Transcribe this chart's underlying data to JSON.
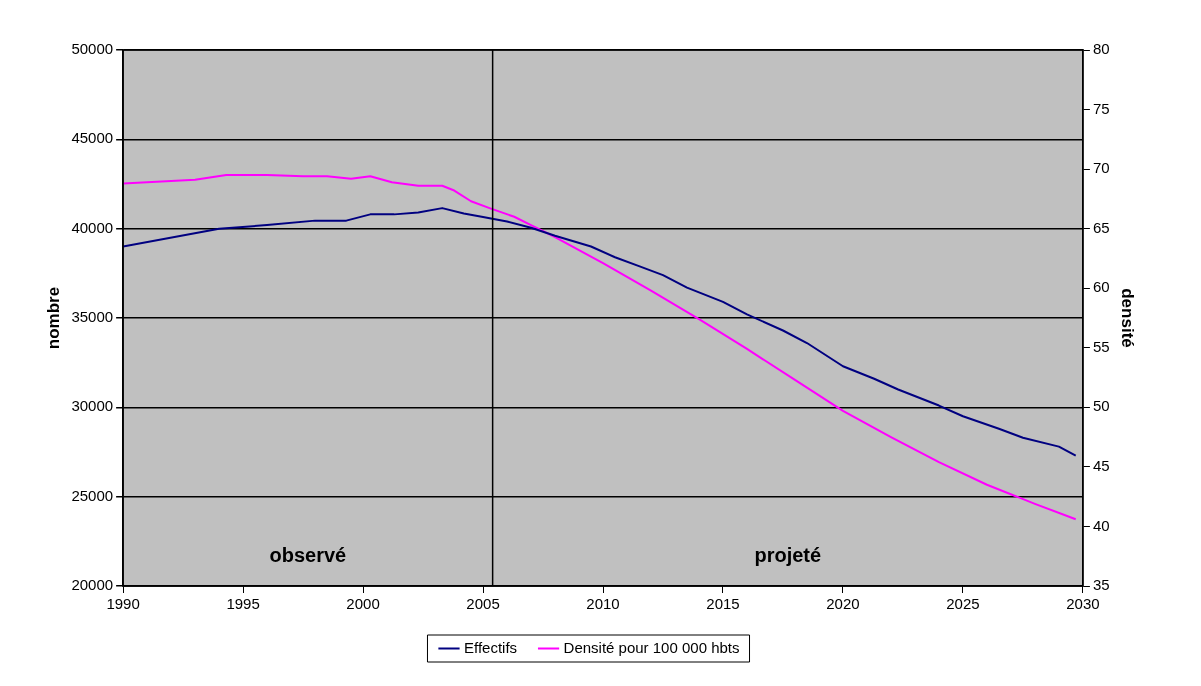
{
  "chart_data": {
    "type": "line",
    "xlabel": null,
    "ylabel": "nombre",
    "y2label": "densité",
    "xlim": [
      1990,
      2030
    ],
    "xticks": [
      1990,
      1995,
      2000,
      2005,
      2010,
      2015,
      2020,
      2025,
      2030
    ],
    "ylim": [
      20000,
      50000
    ],
    "yticks": [
      20000,
      25000,
      30000,
      35000,
      40000,
      45000,
      50000
    ],
    "y2lim": [
      35,
      80
    ],
    "y2ticks": [
      35,
      40,
      45,
      50,
      55,
      60,
      65,
      70,
      75,
      80
    ],
    "grid": "y",
    "legend": "bottom",
    "marker": "none",
    "line_style": "solid",
    "series": [
      {
        "name": "Effectifs",
        "color": "#000080",
        "x": [
          1990,
          1994,
          1996,
          1998,
          1999.3,
          2000.3,
          2001.3,
          2002.3,
          2003.3,
          2004.2,
          2005,
          2006,
          2007,
          2008,
          2009.5,
          2010.5,
          2011.5,
          2012.5,
          2013.5,
          2015,
          2016,
          2017.5,
          2018.5,
          2020,
          2021.3,
          2022.3,
          2024,
          2025,
          2026.5,
          2027.5,
          2029,
          2029.7
        ],
        "values": [
          39000,
          40000,
          40200,
          40450,
          40450,
          40800,
          40800,
          40900,
          41150,
          40850,
          40650,
          40400,
          40050,
          39600,
          39000,
          38400,
          37900,
          37400,
          36700,
          35900,
          35200,
          34300,
          33600,
          32300,
          31600,
          31000,
          30100,
          29500,
          28800,
          28300,
          27800,
          27300
        ]
      },
      {
        "name": "Densité pour 100 000 hbts",
        "color": "#ff00ff",
        "axis": "y2",
        "x": [
          1990,
          1993,
          1994.3,
          1996,
          1997.5,
          1998.5,
          1999.5,
          2000.3,
          2001.2,
          2002.3,
          2003.3,
          2003.8,
          2004.5,
          2005.3,
          2006.3,
          2007,
          2008,
          2009,
          2010,
          2012,
          2014,
          2016,
          2018,
          2020,
          2022,
          2024,
          2026,
          2028,
          2029.7
        ],
        "values": [
          68.8,
          69.1,
          69.5,
          69.5,
          69.4,
          69.4,
          69.2,
          69.4,
          68.9,
          68.6,
          68.6,
          68.2,
          67.3,
          66.7,
          66,
          65.3,
          64.3,
          63.2,
          62.1,
          59.8,
          57.4,
          54.9,
          52.3,
          49.7,
          47.5,
          45.4,
          43.5,
          41.9,
          40.6
        ]
      }
    ],
    "ref_lines": [
      {
        "axis": "x",
        "value": 2005.4,
        "label": null,
        "color": "#000000"
      }
    ],
    "annotations": [
      "observé",
      "projeté"
    ]
  }
}
